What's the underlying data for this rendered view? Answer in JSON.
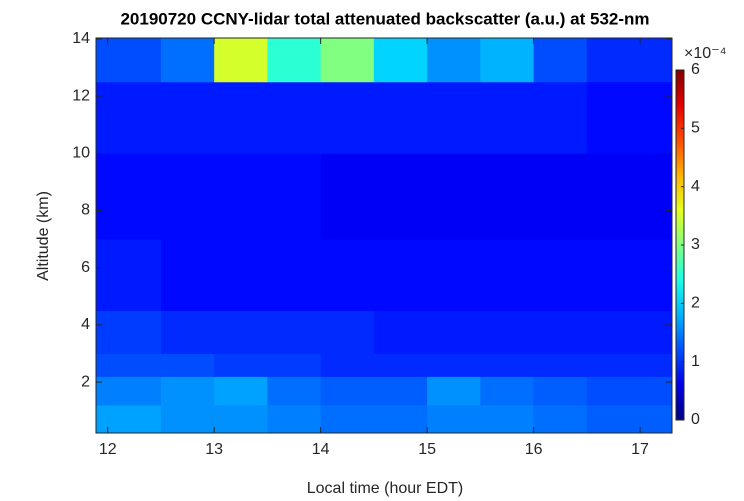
{
  "chart_data": {
    "type": "heatmap",
    "title": "20190720 CCNY-lidar total attenuated backscatter (a.u.) at 532-nm",
    "x_label": "Local time (hour EDT)",
    "y_label": "Altitude (km)",
    "xlim": [
      11.89,
      17.3
    ],
    "ylim": [
      0.22,
      14.03
    ],
    "xticks": [
      12,
      13,
      14,
      15,
      16,
      17
    ],
    "yticks": [
      2,
      4,
      6,
      8,
      10,
      12,
      14
    ],
    "x_edges": [
      11.89,
      12.5,
      13,
      13.5,
      14,
      14.5,
      15,
      15.5,
      16,
      16.5,
      17.3
    ],
    "y_edges": [
      0.22,
      1.2,
      2.2,
      3,
      4.5,
      7,
      10,
      12.5,
      14.03
    ],
    "values": [
      [
        1.7,
        1.6,
        1.6,
        1.5,
        1.4,
        1.4,
        1.5,
        1.5,
        1.4,
        1.3
      ],
      [
        1.5,
        1.6,
        1.7,
        1.4,
        1.3,
        1.3,
        1.6,
        1.4,
        1.3,
        1.2
      ],
      [
        1.2,
        1.2,
        1.1,
        1.1,
        1.0,
        1.0,
        1.0,
        1.0,
        1.0,
        1.0
      ],
      [
        1.1,
        1.0,
        1.0,
        1.0,
        1.0,
        0.9,
        0.9,
        0.9,
        0.9,
        0.9
      ],
      [
        0.9,
        0.8,
        0.8,
        0.8,
        0.8,
        0.8,
        0.8,
        0.8,
        0.8,
        0.8
      ],
      [
        0.8,
        0.8,
        0.8,
        0.8,
        0.7,
        0.7,
        0.7,
        0.7,
        0.7,
        0.7
      ],
      [
        0.9,
        0.9,
        0.9,
        0.9,
        0.9,
        0.9,
        0.9,
        0.9,
        0.9,
        0.8
      ],
      [
        1.2,
        1.4,
        3.5,
        2.5,
        3.0,
        2.0,
        1.6,
        1.8,
        1.2,
        1.0
      ]
    ],
    "colormap": "jet",
    "clim": [
      0,
      6
    ],
    "cticks": [
      0,
      1,
      2,
      3,
      4,
      5,
      6
    ],
    "colorbar_exponent": "×10⁻⁴"
  }
}
